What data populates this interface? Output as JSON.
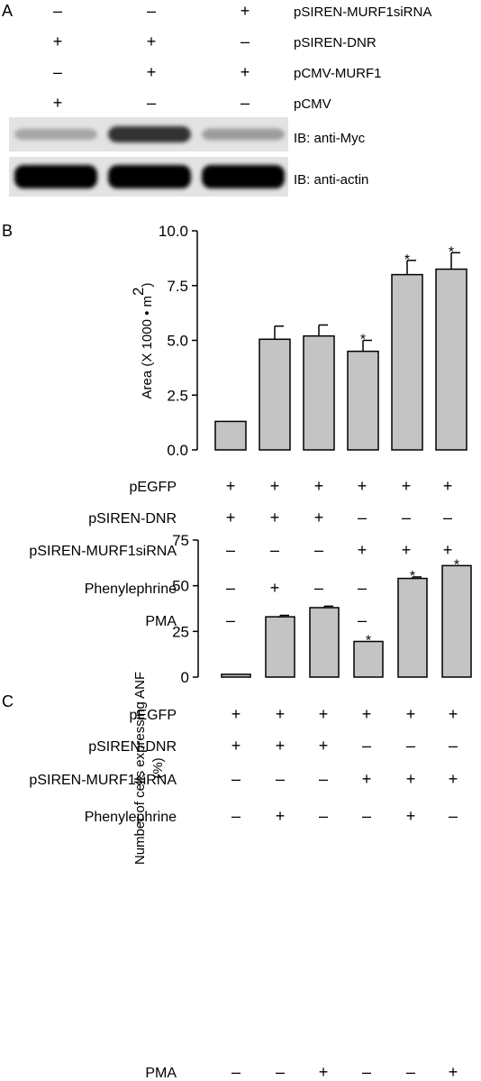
{
  "panel_a": {
    "label": "A",
    "rows": [
      {
        "label": "pSIREN-MURF1siRNA",
        "signs": [
          "–",
          "–",
          "+"
        ]
      },
      {
        "label": "pSIREN-DNR",
        "signs": [
          "+",
          "+",
          "–"
        ]
      },
      {
        "label": "pCMV-MURF1",
        "signs": [
          "–",
          "+",
          "+"
        ]
      },
      {
        "label": "pCMV",
        "signs": [
          "+",
          "–",
          "–"
        ]
      }
    ],
    "blots": [
      {
        "label": "IB: anti-Myc",
        "band_intensity": [
          0.25,
          0.8,
          0.3
        ]
      },
      {
        "label": "IB: anti-actin",
        "band_intensity": [
          1.0,
          1.0,
          1.0
        ]
      }
    ]
  },
  "panel_b": {
    "label": "B",
    "condition_rows": [
      {
        "label": "pEGFP",
        "signs": [
          "+",
          "+",
          "+",
          "+",
          "+",
          "+"
        ]
      },
      {
        "label": "pSIREN-DNR",
        "signs": [
          "+",
          "+",
          "+",
          "–",
          "–",
          "–"
        ]
      },
      {
        "label": "pSIREN-MURF1siRNA",
        "signs": [
          "–",
          "–",
          "–",
          "+",
          "+",
          "+"
        ]
      },
      {
        "label": "Phenylephrine",
        "signs": [
          "–",
          "+",
          "–",
          "–",
          "+",
          "–"
        ]
      },
      {
        "label": "PMA",
        "signs": [
          "–",
          "–",
          "+",
          "–",
          "–",
          "+"
        ]
      }
    ]
  },
  "panel_c": {
    "label": "C",
    "condition_rows": [
      {
        "label": "pEGFP",
        "signs": [
          "+",
          "+",
          "+",
          "+",
          "+",
          "+"
        ]
      },
      {
        "label": "pSIREN-DNR",
        "signs": [
          "+",
          "+",
          "+",
          "–",
          "–",
          "–"
        ]
      },
      {
        "label": "pSIREN-MURF1siRNA",
        "signs": [
          "–",
          "–",
          "–",
          "+",
          "+",
          "+"
        ]
      },
      {
        "label": "Phenylephrine",
        "signs": [
          "–",
          "+",
          "–",
          "–",
          "+",
          "–"
        ]
      },
      {
        "label": "PMA",
        "signs": [
          "–",
          "–",
          "+",
          "–",
          "–",
          "+"
        ]
      }
    ]
  },
  "colors": {
    "bar_fill": "#c4c4c4",
    "stroke": "#000000",
    "background": "#ffffff"
  },
  "chart_data": [
    {
      "type": "bar",
      "panel": "B",
      "categories": [
        "1",
        "2",
        "3",
        "4",
        "5",
        "6"
      ],
      "values": [
        1.3,
        5.05,
        5.2,
        4.5,
        8.0,
        8.25
      ],
      "errors": [
        0.0,
        0.6,
        0.5,
        0.5,
        0.65,
        0.75
      ],
      "significant": [
        false,
        false,
        false,
        true,
        true,
        true
      ],
      "ylabel_main": "Area (X 1000 • m",
      "ylabel_sup": "2",
      "ylabel_close": ")",
      "ylim": [
        0,
        10
      ],
      "ytick_values": [
        0,
        2.5,
        5,
        7.5,
        10
      ],
      "ytick_labels": [
        "0.0",
        "2.5",
        "5.0",
        "7.5",
        "10.0"
      ],
      "grid": false
    },
    {
      "type": "bar",
      "panel": "C",
      "categories": [
        "1",
        "2",
        "3",
        "4",
        "5",
        "6"
      ],
      "values": [
        1.5,
        33,
        38,
        19.5,
        54,
        61
      ],
      "errors": [
        0,
        0.8,
        0.8,
        0,
        0.8,
        0
      ],
      "significant": [
        false,
        false,
        false,
        true,
        true,
        true
      ],
      "ylabel_lines": [
        "Number of cells expressing ANF",
        "(%)"
      ],
      "ylim": [
        0,
        75
      ],
      "ytick_values": [
        0,
        25,
        50,
        75
      ],
      "ytick_labels": [
        "0",
        "25",
        "50",
        "75"
      ],
      "grid": false
    }
  ]
}
